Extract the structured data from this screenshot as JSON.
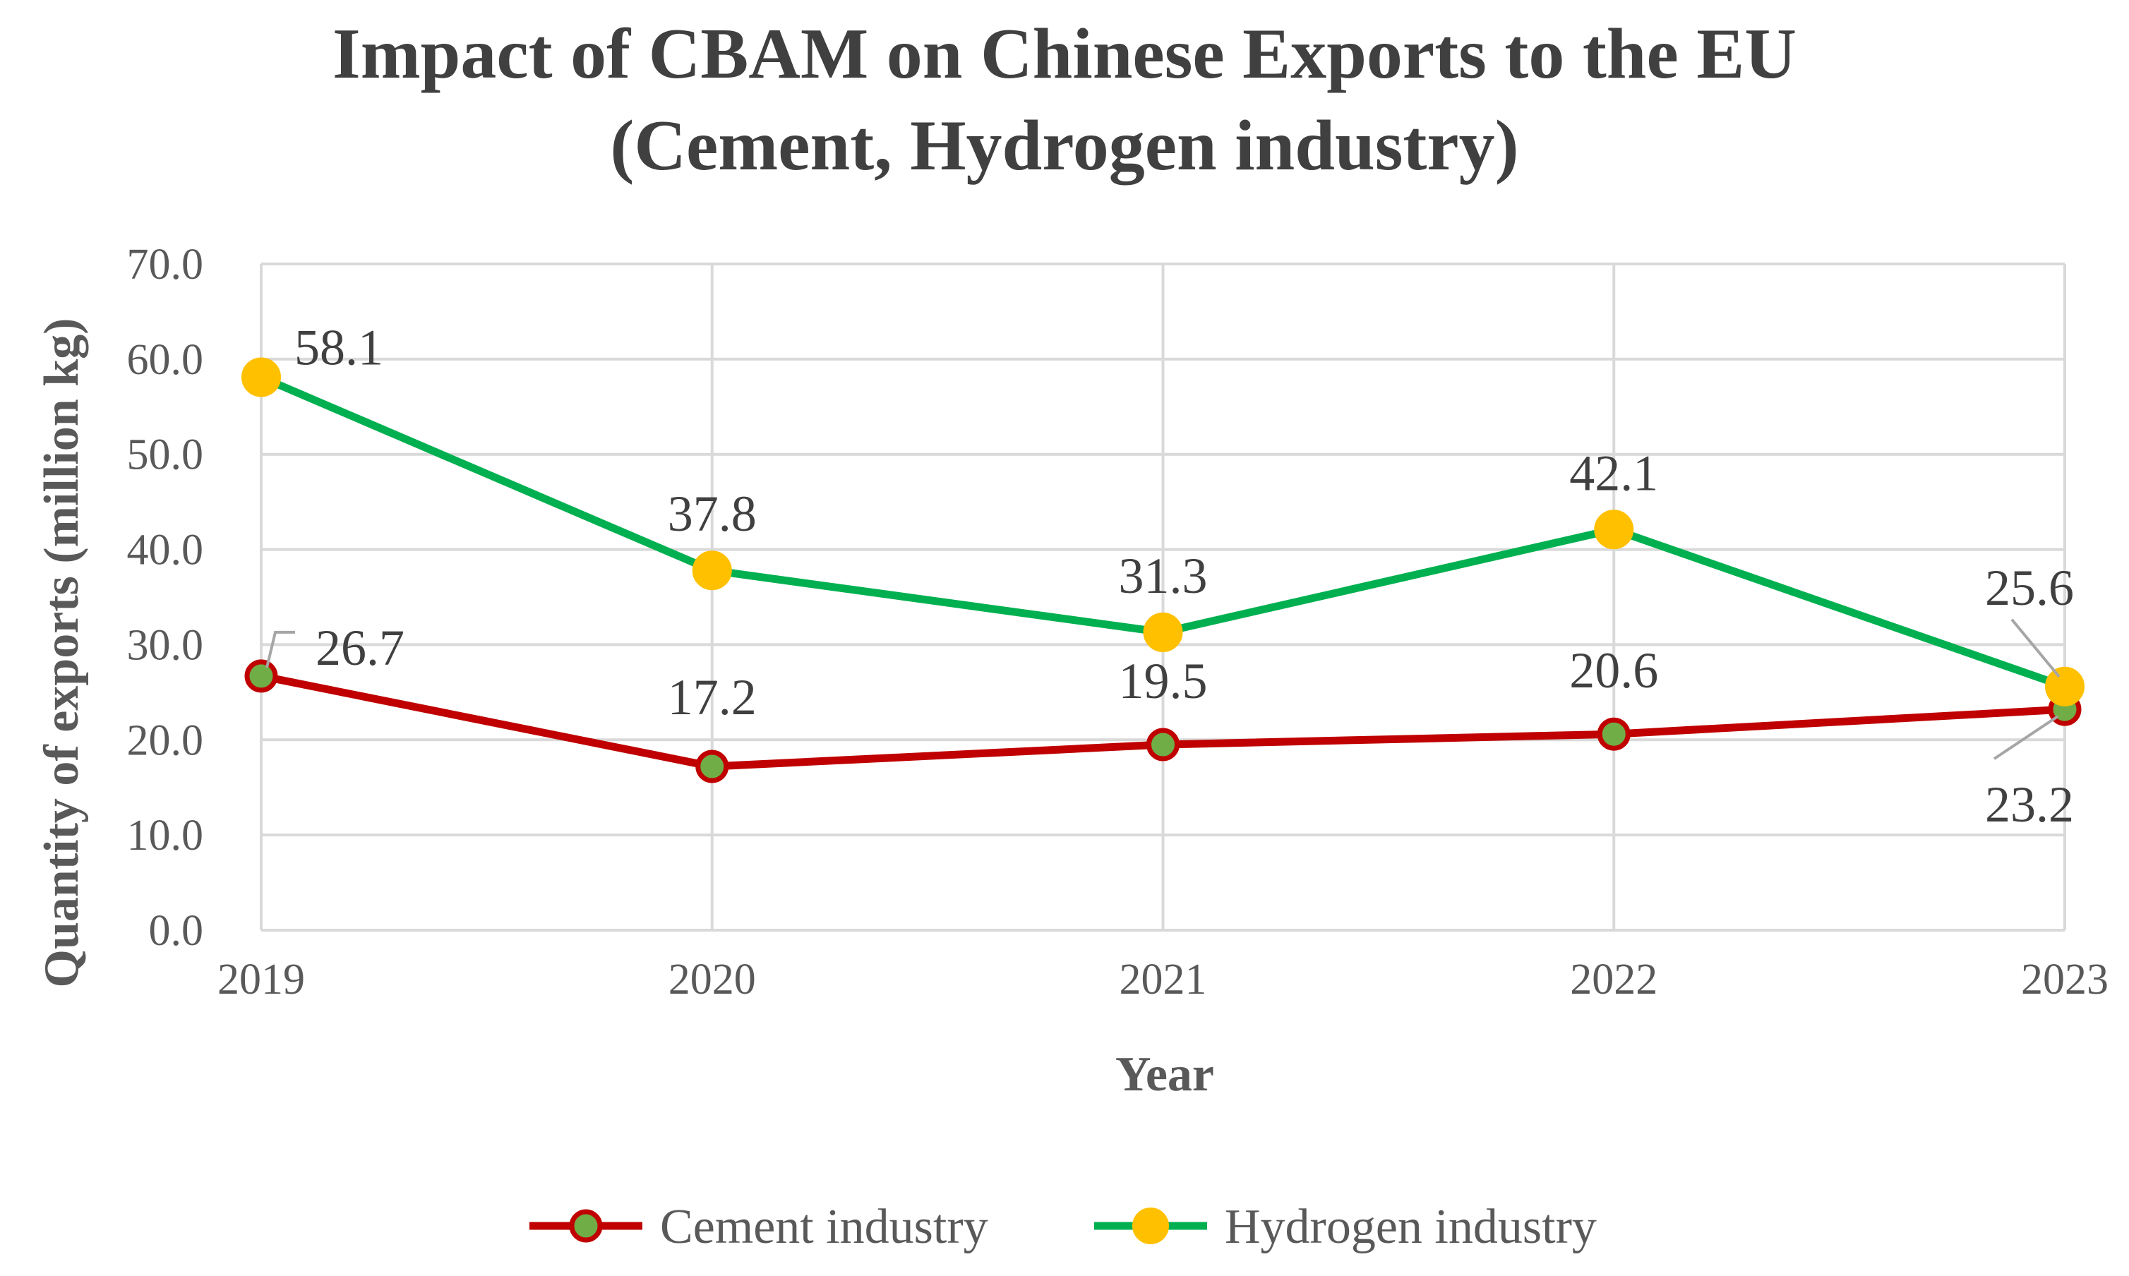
{
  "chart_data": {
    "type": "line",
    "title": "Impact of CBAM on Chinese Exports to the EU",
    "subtitle": "(Cement,  Hydrogen industry)",
    "xlabel": "Year",
    "ylabel": "Quantity of  exports (million kg)",
    "categories": [
      "2019",
      "2020",
      "2021",
      "2022",
      "2023"
    ],
    "ylim": [
      0,
      70
    ],
    "ytick_step": 10,
    "ytick_labels": [
      "0.0",
      "10.0",
      "20.0",
      "30.0",
      "40.0",
      "50.0",
      "60.0",
      "70.0"
    ],
    "grid": true,
    "legend_position": "bottom",
    "series": [
      {
        "name": "Cement industry",
        "values": [
          26.7,
          17.2,
          19.5,
          20.6,
          23.2
        ],
        "labels": [
          "26.7",
          "17.2",
          "19.5",
          "20.6",
          "23.2"
        ],
        "line_color": "#C00000",
        "marker_color": "#70AD47",
        "marker_edge_color": "#C00000"
      },
      {
        "name": "Hydrogen industry",
        "values": [
          58.1,
          37.8,
          31.3,
          42.1,
          25.6
        ],
        "labels": [
          "58.1",
          "37.8",
          "31.3",
          "42.1",
          "25.6"
        ],
        "line_color": "#00B050",
        "marker_color": "#FFC000",
        "marker_edge_color": "#FFC000"
      }
    ],
    "colors": {
      "gridline": "#D9D9D9",
      "leader_line": "#A6A6A6"
    }
  }
}
